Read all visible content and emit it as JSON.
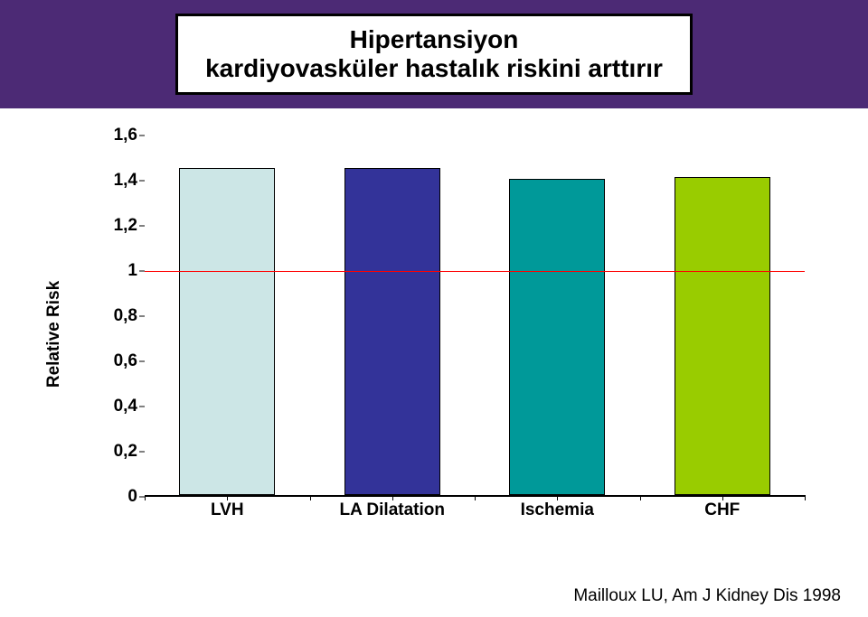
{
  "title": {
    "line1": "Hipertansiyon",
    "line2": "kardiyovasküler hastalık riskini arttırır",
    "fontsize": 28,
    "text_color": "#000000",
    "box_bg": "#ffffff",
    "box_border": "#000000",
    "band_bg": "#4c2a75"
  },
  "chart": {
    "type": "bar",
    "ylabel": "Relative Risk",
    "label_fontsize": 19,
    "tick_fontsize": 19,
    "xlabel_fontsize": 19,
    "ylim": [
      0,
      1.6
    ],
    "ytick_step": 0.2,
    "yticks": [
      "0",
      "0,2",
      "0,4",
      "0,6",
      "0,8",
      "1",
      "1,2",
      "1,4",
      "1,6"
    ],
    "categories": [
      "LVH",
      "LA Dilatation",
      "Ischemia",
      "CHF"
    ],
    "values": [
      1.45,
      1.45,
      1.4,
      1.41
    ],
    "bar_colors": [
      "#cce6e6",
      "#333399",
      "#009999",
      "#99cc00"
    ],
    "bar_border": "#000000",
    "bar_width": 0.58,
    "refline_value": 1.0,
    "refline_color": "#ff0000",
    "refline_width": 1,
    "axis_color": "#000000",
    "background_color": "#ffffff"
  },
  "citation": {
    "text": "Mailloux LU, Am J Kidney Dis 1998",
    "fontsize": 19,
    "color": "#000000"
  }
}
